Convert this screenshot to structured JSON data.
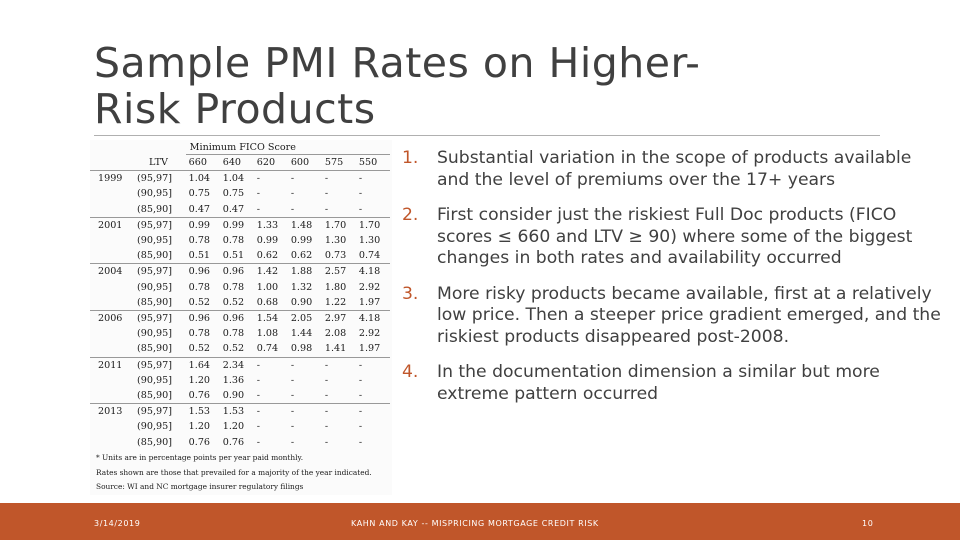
{
  "slide": {
    "title": "Sample PMI Rates on Higher-Risk Products",
    "title_line1": "Sample PMI Rates on Higher-",
    "title_line2": "Risk Products"
  },
  "table": {
    "super_header": "Minimum FICO Score",
    "ltv_header": "LTV",
    "fico_columns": [
      "660",
      "640",
      "620",
      "600",
      "575",
      "550"
    ],
    "groups": [
      {
        "year": "1999",
        "rows": [
          {
            "ltv": "(95,97]",
            "values": [
              "1.04",
              "1.04",
              "-",
              "-",
              "-",
              "-"
            ]
          },
          {
            "ltv": "(90,95]",
            "values": [
              "0.75",
              "0.75",
              "-",
              "-",
              "-",
              "-"
            ]
          },
          {
            "ltv": "(85,90]",
            "values": [
              "0.47",
              "0.47",
              "-",
              "-",
              "-",
              "-"
            ]
          }
        ]
      },
      {
        "year": "2001",
        "rows": [
          {
            "ltv": "(95,97]",
            "values": [
              "0.99",
              "0.99",
              "1.33",
              "1.48",
              "1.70",
              "1.70"
            ]
          },
          {
            "ltv": "(90,95]",
            "values": [
              "0.78",
              "0.78",
              "0.99",
              "0.99",
              "1.30",
              "1.30"
            ]
          },
          {
            "ltv": "(85,90]",
            "values": [
              "0.51",
              "0.51",
              "0.62",
              "0.62",
              "0.73",
              "0.74"
            ]
          }
        ]
      },
      {
        "year": "2004",
        "rows": [
          {
            "ltv": "(95,97]",
            "values": [
              "0.96",
              "0.96",
              "1.42",
              "1.88",
              "2.57",
              "4.18"
            ]
          },
          {
            "ltv": "(90,95]",
            "values": [
              "0.78",
              "0.78",
              "1.00",
              "1.32",
              "1.80",
              "2.92"
            ]
          },
          {
            "ltv": "(85,90]",
            "values": [
              "0.52",
              "0.52",
              "0.68",
              "0.90",
              "1.22",
              "1.97"
            ]
          }
        ]
      },
      {
        "year": "2006",
        "rows": [
          {
            "ltv": "(95,97]",
            "values": [
              "0.96",
              "0.96",
              "1.54",
              "2.05",
              "2.97",
              "4.18"
            ]
          },
          {
            "ltv": "(90,95]",
            "values": [
              "0.78",
              "0.78",
              "1.08",
              "1.44",
              "2.08",
              "2.92"
            ]
          },
          {
            "ltv": "(85,90]",
            "values": [
              "0.52",
              "0.52",
              "0.74",
              "0.98",
              "1.41",
              "1.97"
            ]
          }
        ]
      },
      {
        "year": "2011",
        "rows": [
          {
            "ltv": "(95,97]",
            "values": [
              "1.64",
              "2.34",
              "-",
              "-",
              "-",
              "-"
            ]
          },
          {
            "ltv": "(90,95]",
            "values": [
              "1.20",
              "1.36",
              "-",
              "-",
              "-",
              "-"
            ]
          },
          {
            "ltv": "(85,90]",
            "values": [
              "0.76",
              "0.90",
              "-",
              "-",
              "-",
              "-"
            ]
          }
        ]
      },
      {
        "year": "2013",
        "rows": [
          {
            "ltv": "(95,97]",
            "values": [
              "1.53",
              "1.53",
              "-",
              "-",
              "-",
              "-"
            ]
          },
          {
            "ltv": "(90,95]",
            "values": [
              "1.20",
              "1.20",
              "-",
              "-",
              "-",
              "-"
            ]
          },
          {
            "ltv": "(85,90]",
            "values": [
              "0.76",
              "0.76",
              "-",
              "-",
              "-",
              "-"
            ]
          }
        ]
      }
    ],
    "notes": [
      "* Units are in percentage points per year paid monthly.",
      "Rates shown are those that prevailed for a majority of the year indicated.",
      "Source: WI and NC mortgage insurer regulatory filings"
    ]
  },
  "bullets": [
    {
      "num": "1.",
      "text": "Substantial variation in the scope of products available and the level of premiums over the 17+ years"
    },
    {
      "num": "2.",
      "text": "First consider just the riskiest Full Doc products (FICO scores ≤ 660 and LTV ≥ 90) where some of the biggest changes in both rates and availability occurred"
    },
    {
      "num": "3.",
      "text": "More risky products became available, first at a relatively low price. Then a steeper price gradient emerged, and the riskiest products disappeared post-2008."
    },
    {
      "num": "4.",
      "text": "In the documentation dimension a similar but more extreme pattern occurred"
    }
  ],
  "footer": {
    "date": "3/14/2019",
    "center": "KAHN AND KAY -- MISPRICING MORTGAGE CREDIT RISK",
    "page": "10"
  },
  "colors": {
    "accent": "#c0562a",
    "text": "#404040"
  }
}
